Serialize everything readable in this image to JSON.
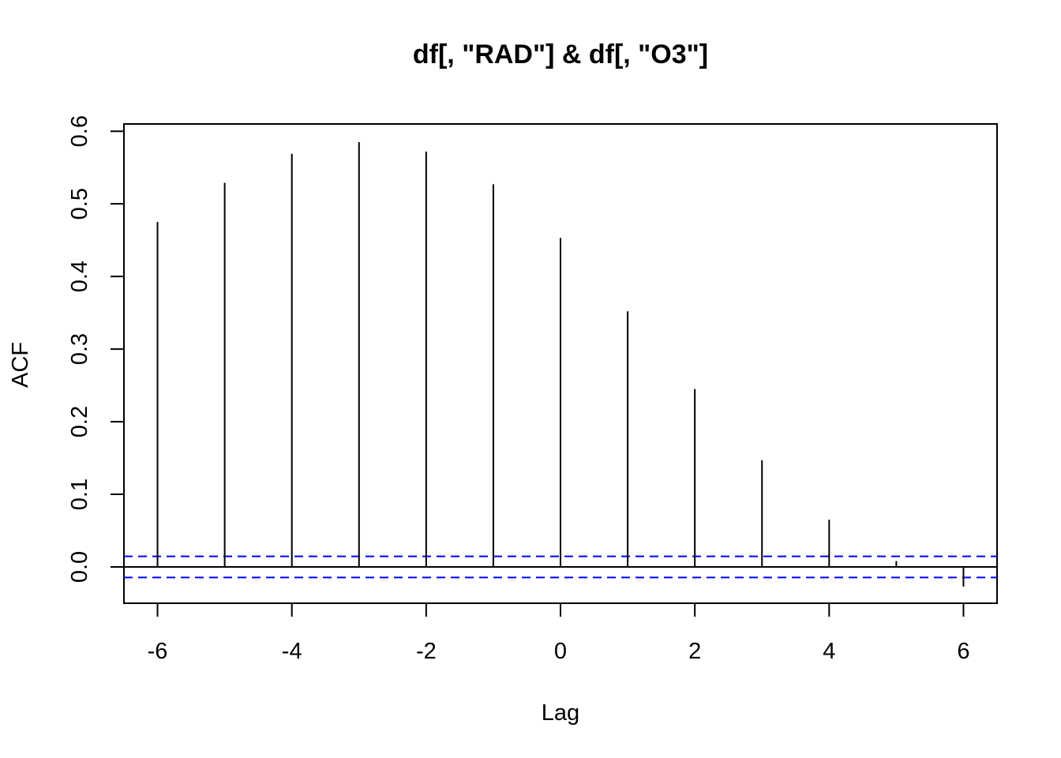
{
  "chart_data": {
    "type": "bar",
    "title": "df[, \"RAD\"] & df[, \"O3\"]",
    "xlabel": "Lag",
    "ylabel": "ACF",
    "xlim": [
      -6.5,
      6.5
    ],
    "ylim": [
      -0.05,
      0.61
    ],
    "x_ticks": [
      "-6",
      "-4",
      "-2",
      "0",
      "2",
      "4",
      "6"
    ],
    "y_ticks": [
      "0.0",
      "0.1",
      "0.2",
      "0.3",
      "0.4",
      "0.5",
      "0.6"
    ],
    "lags": [
      -6,
      -5,
      -4,
      -3,
      -2,
      -1,
      0,
      1,
      2,
      3,
      4,
      5,
      6
    ],
    "values": [
      0.475,
      0.529,
      0.569,
      0.585,
      0.572,
      0.527,
      0.453,
      0.352,
      0.245,
      0.147,
      0.065,
      0.008,
      -0.027
    ],
    "confidence_bound": 0.0145,
    "colors": {
      "bars": "#000000",
      "confidence_lines": "#0000ff",
      "zero_line": "#000000"
    },
    "grid": false,
    "legend": "none"
  }
}
